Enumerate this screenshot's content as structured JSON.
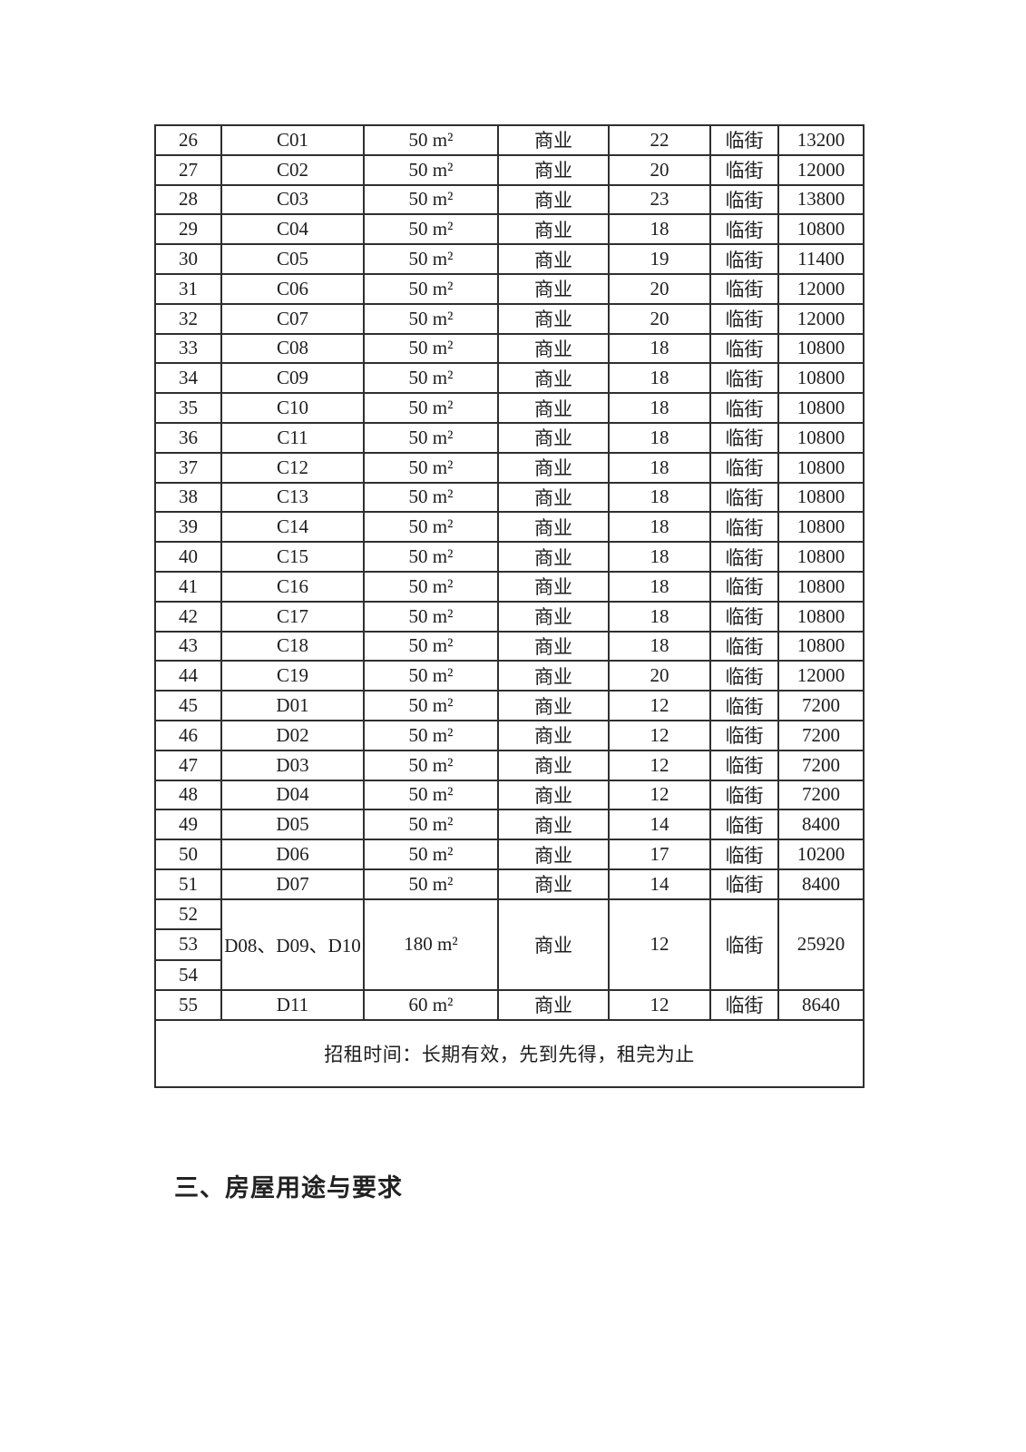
{
  "colors": {
    "ink": "#1d1d1d",
    "table_border": "#2f2f2f",
    "page_background": "#ffffff"
  },
  "document": {
    "section_heading": "三、房屋用途与要求",
    "table": {
      "footer_note": "招租时间：长期有效，先到先得，租完为止",
      "rows": [
        {
          "cells": [
            "26",
            "C01",
            "50 m²",
            "商业",
            "22",
            "临街",
            "13200"
          ]
        },
        {
          "cells": [
            "27",
            "C02",
            "50 m²",
            "商业",
            "20",
            "临街",
            "12000"
          ]
        },
        {
          "cells": [
            "28",
            "C03",
            "50 m²",
            "商业",
            "23",
            "临街",
            "13800"
          ]
        },
        {
          "cells": [
            "29",
            "C04",
            "50 m²",
            "商业",
            "18",
            "临街",
            "10800"
          ]
        },
        {
          "cells": [
            "30",
            "C05",
            "50 m²",
            "商业",
            "19",
            "临街",
            "11400"
          ]
        },
        {
          "cells": [
            "31",
            "C06",
            "50 m²",
            "商业",
            "20",
            "临街",
            "12000"
          ]
        },
        {
          "cells": [
            "32",
            "C07",
            "50 m²",
            "商业",
            "20",
            "临街",
            "12000"
          ]
        },
        {
          "cells": [
            "33",
            "C08",
            "50 m²",
            "商业",
            "18",
            "临街",
            "10800"
          ]
        },
        {
          "cells": [
            "34",
            "C09",
            "50 m²",
            "商业",
            "18",
            "临街",
            "10800"
          ]
        },
        {
          "cells": [
            "35",
            "C10",
            "50 m²",
            "商业",
            "18",
            "临街",
            "10800"
          ]
        },
        {
          "cells": [
            "36",
            "C11",
            "50 m²",
            "商业",
            "18",
            "临街",
            "10800"
          ]
        },
        {
          "cells": [
            "37",
            "C12",
            "50 m²",
            "商业",
            "18",
            "临街",
            "10800"
          ]
        },
        {
          "cells": [
            "38",
            "C13",
            "50 m²",
            "商业",
            "18",
            "临街",
            "10800"
          ]
        },
        {
          "cells": [
            "39",
            "C14",
            "50 m²",
            "商业",
            "18",
            "临街",
            "10800"
          ]
        },
        {
          "cells": [
            "40",
            "C15",
            "50 m²",
            "商业",
            "18",
            "临街",
            "10800"
          ]
        },
        {
          "cells": [
            "41",
            "C16",
            "50 m²",
            "商业",
            "18",
            "临街",
            "10800"
          ]
        },
        {
          "cells": [
            "42",
            "C17",
            "50 m²",
            "商业",
            "18",
            "临街",
            "10800"
          ]
        },
        {
          "cells": [
            "43",
            "C18",
            "50 m²",
            "商业",
            "18",
            "临街",
            "10800"
          ]
        },
        {
          "cells": [
            "44",
            "C19",
            "50 m²",
            "商业",
            "20",
            "临街",
            "12000"
          ]
        },
        {
          "cells": [
            "45",
            "D01",
            "50 m²",
            "商业",
            "12",
            "临街",
            "7200"
          ]
        },
        {
          "cells": [
            "46",
            "D02",
            "50 m²",
            "商业",
            "12",
            "临街",
            "7200"
          ]
        },
        {
          "cells": [
            "47",
            "D03",
            "50 m²",
            "商业",
            "12",
            "临街",
            "7200"
          ]
        },
        {
          "cells": [
            "48",
            "D04",
            "50 m²",
            "商业",
            "12",
            "临街",
            "7200"
          ]
        },
        {
          "cells": [
            "49",
            "D05",
            "50 m²",
            "商业",
            "14",
            "临街",
            "8400"
          ]
        },
        {
          "cells": [
            "50",
            "D06",
            "50 m²",
            "商业",
            "17",
            "临街",
            "10200"
          ]
        },
        {
          "cells": [
            "51",
            "D07",
            "50 m²",
            "商业",
            "14",
            "临街",
            "8400"
          ]
        },
        {
          "merged_nos": [
            "52",
            "53",
            "54"
          ],
          "cells": [
            "D08、D09、D10",
            "180 m²",
            "商业",
            "12",
            "临街",
            "25920"
          ]
        },
        {
          "cells": [
            "55",
            "D11",
            "60 m²",
            "商业",
            "12",
            "临街",
            "8640"
          ]
        }
      ]
    }
  }
}
